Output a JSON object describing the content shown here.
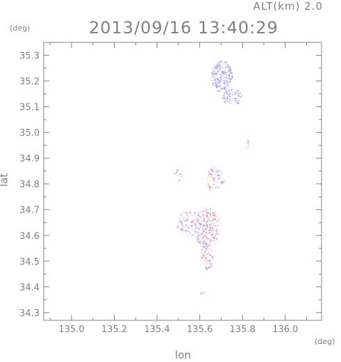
{
  "header": {
    "altitude_label": "ALT(km) 2.0",
    "timestamp": "2013/09/16 13:40:29"
  },
  "axes": {
    "x_label": "lon",
    "x_unit": "(deg)",
    "y_label": "lat",
    "y_unit": "(deg)"
  },
  "chart_data": {
    "type": "heatmap",
    "xlabel": "lon",
    "ylabel": "lat",
    "xlim": [
      134.87,
      136.17
    ],
    "ylim": [
      34.27,
      35.35
    ],
    "x_ticks": [
      "135.0",
      "135.2",
      "135.4",
      "135.6",
      "135.8",
      "136.0"
    ],
    "x_tick_values": [
      135.0,
      135.2,
      135.4,
      135.6,
      135.8,
      136.0
    ],
    "y_ticks": [
      "34.3",
      "34.4",
      "34.5",
      "34.6",
      "34.7",
      "34.8",
      "34.9",
      "35.0",
      "35.1",
      "35.2",
      "35.3"
    ],
    "y_tick_values": [
      34.3,
      34.4,
      34.5,
      34.6,
      34.7,
      34.8,
      34.9,
      35.0,
      35.1,
      35.2,
      35.3
    ],
    "colors": {
      "positive": "#ff8080",
      "negative": "#8080ff",
      "frame": "#808080"
    },
    "clusters": [
      {
        "lon": 135.7,
        "lat": 35.22,
        "dlon": 0.05,
        "dlat": 0.06,
        "sign": "negative",
        "density": 0.9
      },
      {
        "lon": 135.75,
        "lat": 35.14,
        "dlon": 0.05,
        "dlat": 0.03,
        "sign": "negative",
        "density": 0.6
      },
      {
        "lon": 135.63,
        "lat": 34.63,
        "dlon": 0.06,
        "dlat": 0.08,
        "sign": "mixed",
        "density": 0.55
      },
      {
        "lon": 135.55,
        "lat": 34.65,
        "dlon": 0.06,
        "dlat": 0.05,
        "sign": "mixed",
        "density": 0.35
      },
      {
        "lon": 135.63,
        "lat": 34.52,
        "dlon": 0.03,
        "dlat": 0.05,
        "sign": "mixed",
        "density": 0.5
      },
      {
        "lon": 135.67,
        "lat": 34.82,
        "dlon": 0.04,
        "dlat": 0.05,
        "sign": "mixed",
        "density": 0.3
      },
      {
        "lon": 135.5,
        "lat": 34.84,
        "dlon": 0.02,
        "dlat": 0.03,
        "sign": "mixed",
        "density": 0.3
      },
      {
        "lon": 135.82,
        "lat": 34.96,
        "dlon": 0.01,
        "dlat": 0.02,
        "sign": "positive",
        "density": 0.5
      },
      {
        "lon": 135.61,
        "lat": 34.38,
        "dlon": 0.01,
        "dlat": 0.01,
        "sign": "positive",
        "density": 0.9
      },
      {
        "lon": 135.65,
        "lat": 34.48,
        "dlon": 0.01,
        "dlat": 0.01,
        "sign": "positive",
        "density": 0.8
      }
    ]
  }
}
